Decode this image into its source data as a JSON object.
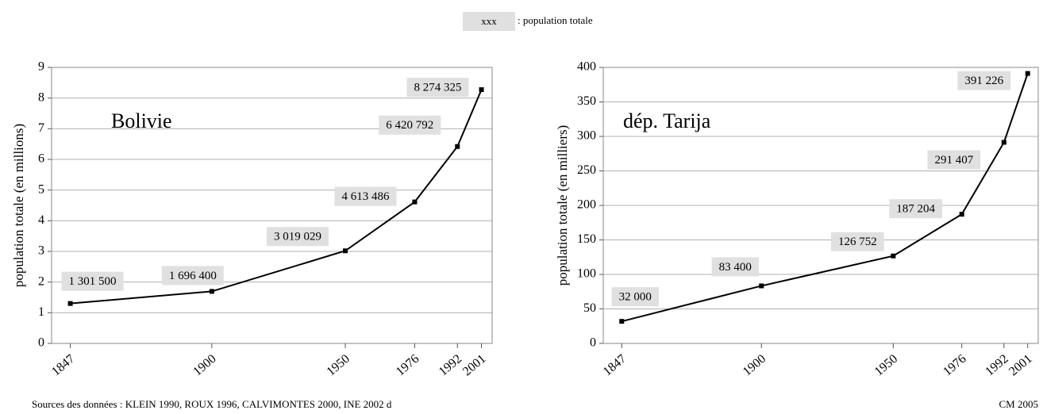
{
  "legend": {
    "sample": "xxx",
    "text": ": population totale"
  },
  "source": "Sources des données : KLEIN 1990, ROUX 1996, CALVIMONTES 2000, INE 2002 d",
  "credit": "CM 2005",
  "chart_data": [
    {
      "type": "line",
      "title": "Bolivie",
      "ylabel": "population totale (en millions)",
      "x": [
        1847,
        1900,
        1950,
        1976,
        1992,
        2001
      ],
      "values": [
        1.3015,
        1.6964,
        3.019029,
        4.613486,
        6.420792,
        8.274325
      ],
      "value_labels": [
        "1 301 500",
        "1 696 400",
        "3 019 029",
        "4 613 486",
        "6 420 792",
        "8 274 325"
      ],
      "xlim": [
        1840,
        2005
      ],
      "xticks": [
        1847,
        1900,
        1950,
        1976,
        1992,
        2001
      ],
      "ylim": [
        0,
        9
      ],
      "yticks": [
        0,
        1,
        2,
        3,
        4,
        5,
        6,
        7,
        8,
        9
      ],
      "color": "#000000",
      "grid": true
    },
    {
      "type": "line",
      "title": "dép. Tarija",
      "ylabel": "population totale (en milliers)",
      "x": [
        1847,
        1900,
        1950,
        1976,
        1992,
        2001
      ],
      "values": [
        32.0,
        83.4,
        126.752,
        187.204,
        291.407,
        391.226
      ],
      "value_labels": [
        "32 000",
        "83 400",
        "126 752",
        "187 204",
        "291 407",
        "391 226"
      ],
      "xlim": [
        1840,
        2005
      ],
      "xticks": [
        1847,
        1900,
        1950,
        1976,
        1992,
        2001
      ],
      "ylim": [
        0,
        400
      ],
      "yticks": [
        0,
        50,
        100,
        150,
        200,
        250,
        300,
        350,
        400
      ],
      "color": "#000000",
      "grid": true
    }
  ]
}
